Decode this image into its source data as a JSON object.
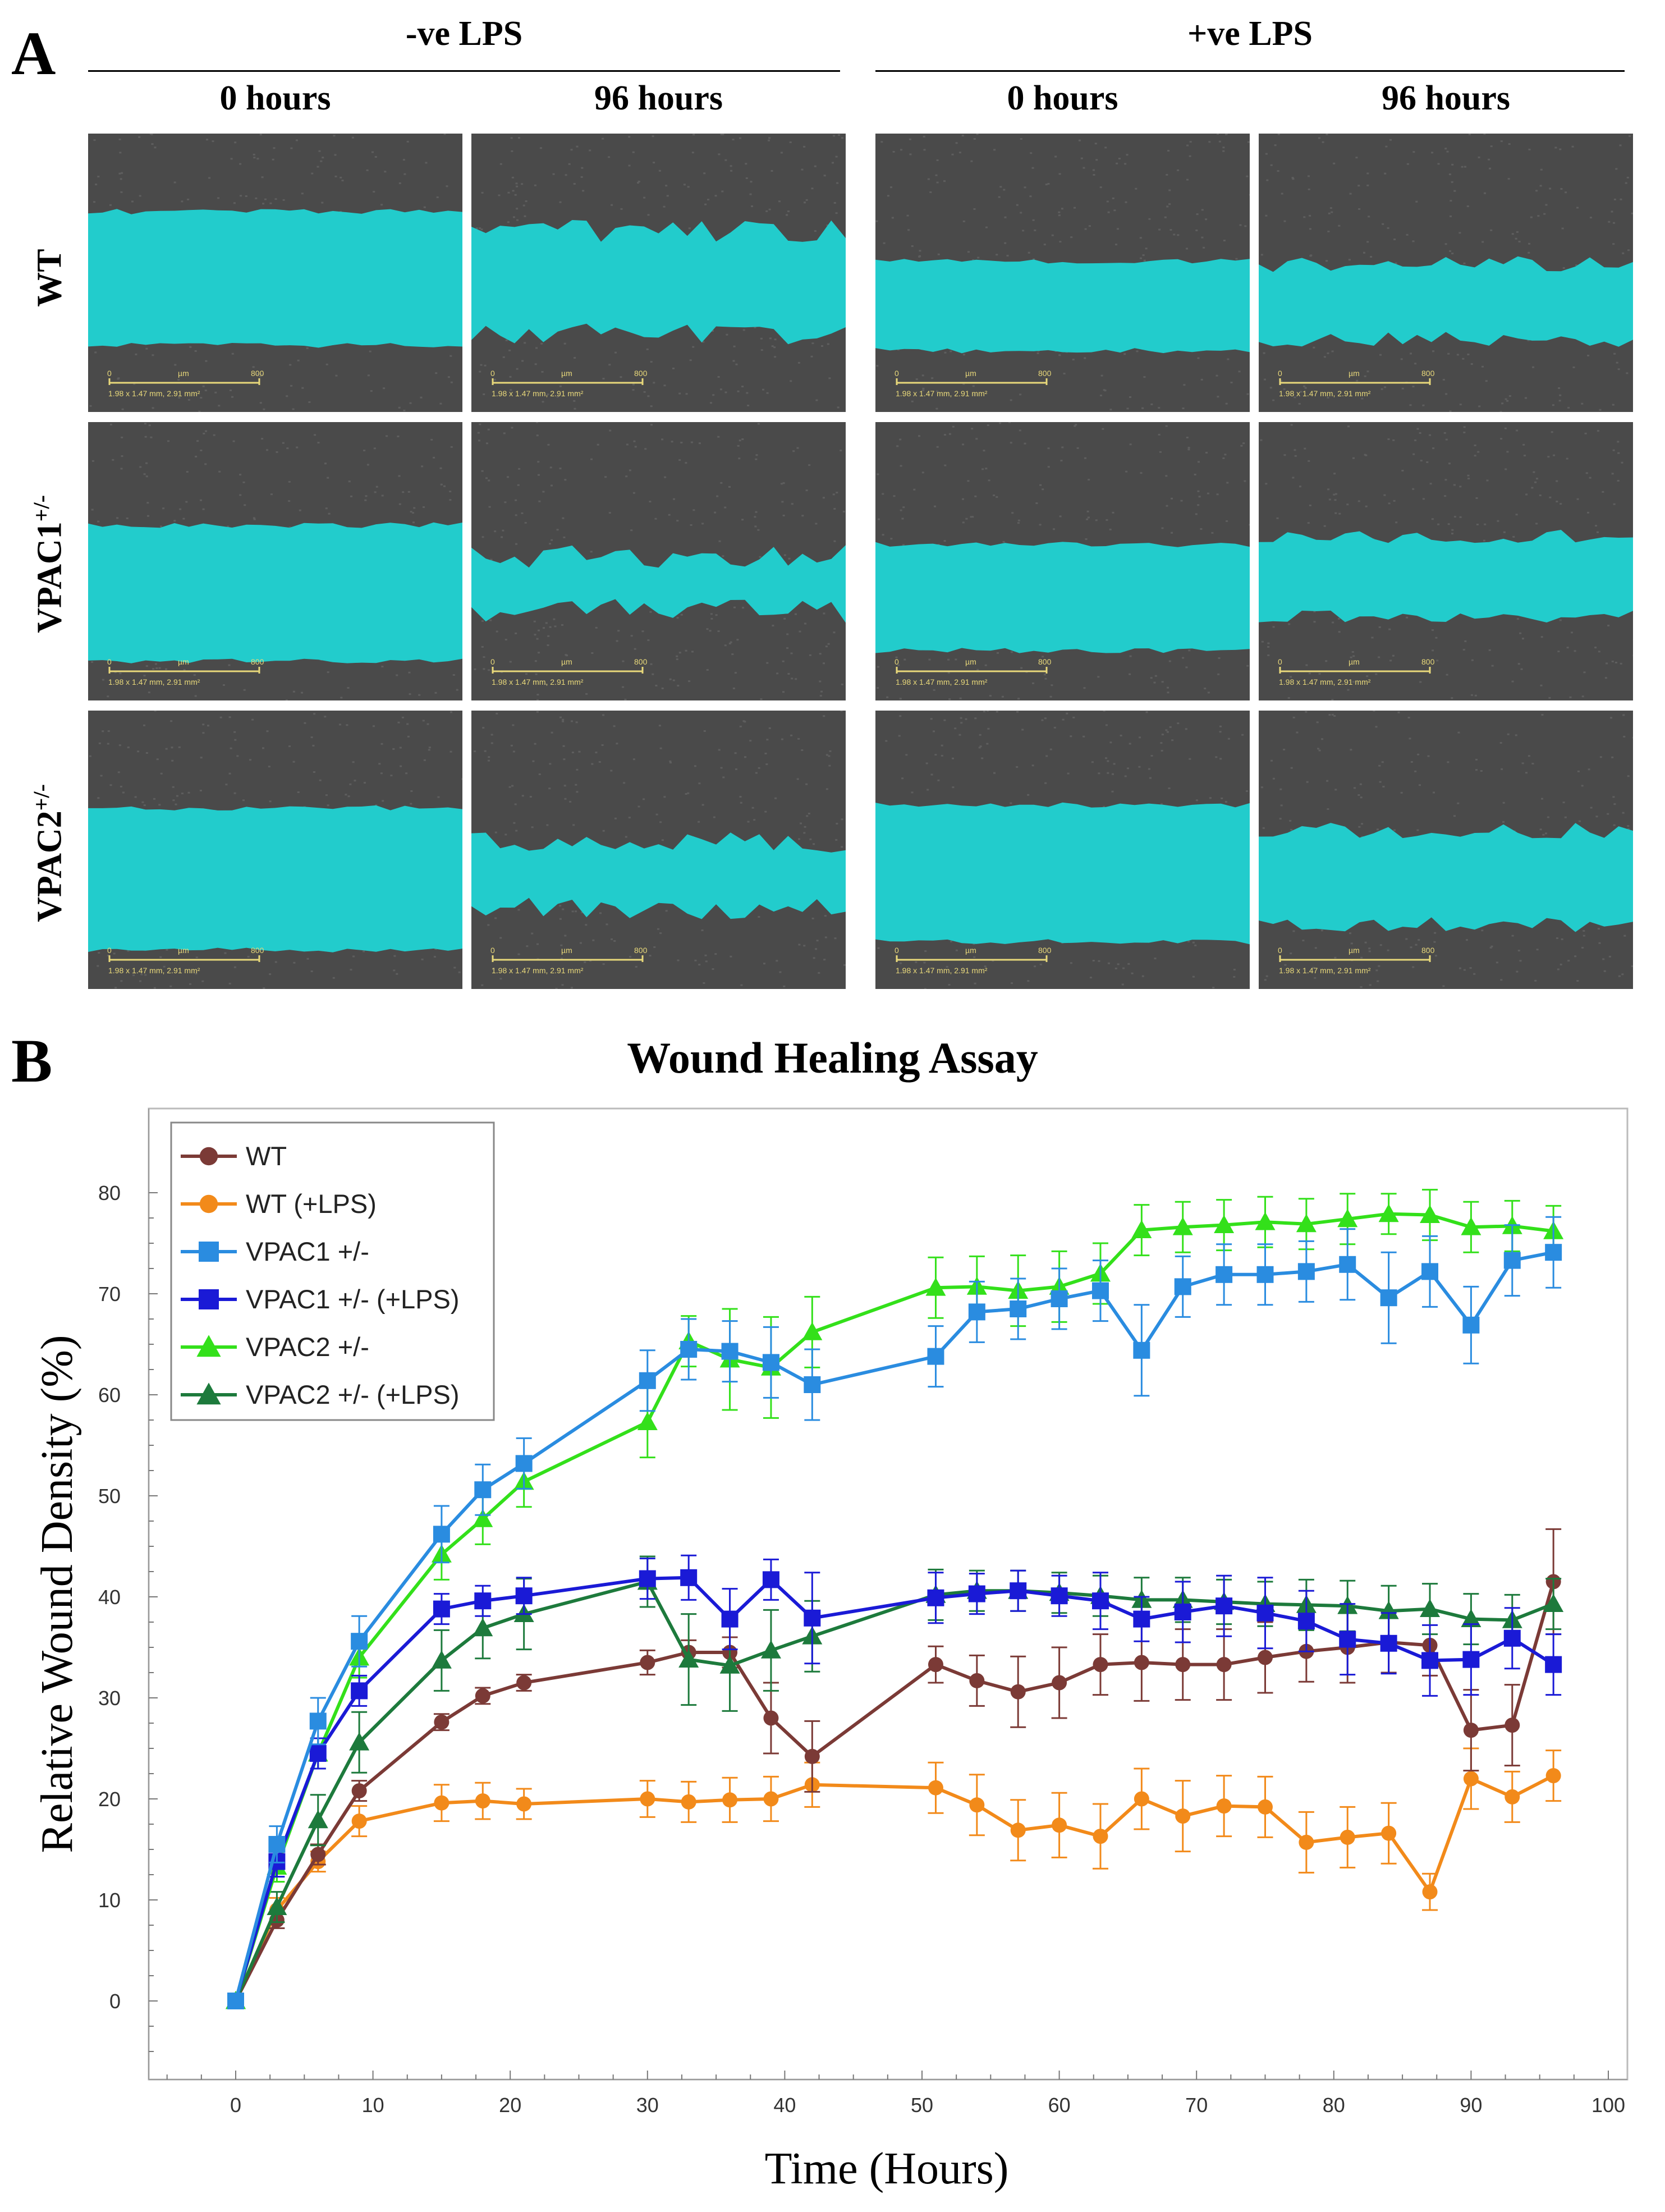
{
  "panel_a": {
    "label": "A",
    "groups": [
      "-ve LPS",
      "+ve LPS"
    ],
    "timepoints": [
      "0 hours",
      "96 hours",
      "0 hours",
      "96 hours"
    ],
    "rows": [
      {
        "name": "WT",
        "sup": ""
      },
      {
        "name": "VPAC1",
        "sup": "+/-"
      },
      {
        "name": "VPAC2",
        "sup": "+/-"
      }
    ],
    "scale_start": "0",
    "scale_unit": "µm",
    "scale_end": "800",
    "scale_caption": "1.98 x 1.47 mm, 2.91 mm²",
    "colors": {
      "wound": "#22cccc",
      "cells": "#4a4a4a"
    }
  },
  "panel_b": {
    "label": "B"
  },
  "chart_data": {
    "type": "line",
    "title": "Wound Healing Assay",
    "xlabel": "Time (Hours)",
    "ylabel": "Relative Wound Density (%)",
    "xlim": [
      -5,
      100
    ],
    "ylim": [
      -8,
      84
    ],
    "xticks": [
      0,
      10,
      20,
      30,
      40,
      50,
      60,
      70,
      80,
      90,
      100
    ],
    "yticks": [
      0,
      10,
      20,
      30,
      40,
      50,
      60,
      70,
      80
    ],
    "legend_position": "top-left",
    "x": [
      0,
      3,
      6,
      9,
      15,
      18,
      21,
      30,
      33,
      36,
      39,
      42,
      51,
      54,
      57,
      60,
      63,
      66,
      69,
      72,
      75,
      78,
      81,
      84,
      87,
      90,
      93,
      96
    ],
    "series": [
      {
        "name": "WT",
        "color": "#7b3a36",
        "marker": "circle",
        "values": [
          0,
          8,
          14.5,
          20.8,
          27.6,
          30.2,
          31.5,
          33.5,
          34.5,
          34.5,
          28,
          24.2,
          33.3,
          31.7,
          30.6,
          31.5,
          33.3,
          33.5,
          33.3,
          33.3,
          34,
          34.6,
          35,
          35.5,
          35.2,
          26.8,
          27.3,
          41.5
        ],
        "errors": [
          0,
          0.8,
          1,
          1,
          0.8,
          0.8,
          0.8,
          1.2,
          1.2,
          1.5,
          3.5,
          3.5,
          1.8,
          2.5,
          3.5,
          3.5,
          3,
          3.8,
          3.5,
          3.5,
          3.5,
          3,
          3.5,
          3,
          3,
          4,
          4,
          5.2
        ]
      },
      {
        "name": "WT (+LPS)",
        "color": "#f28a1a",
        "marker": "circle",
        "values": [
          0,
          9,
          13.8,
          17.8,
          19.6,
          19.8,
          19.5,
          20,
          19.7,
          19.9,
          20,
          21.4,
          21.1,
          19.4,
          16.9,
          17.4,
          16.3,
          20,
          18.3,
          19.3,
          19.2,
          15.7,
          16.2,
          16.6,
          10.8,
          22,
          20.2,
          22.3
        ],
        "errors": [
          0,
          1.2,
          1,
          1.5,
          1.8,
          1.8,
          1.5,
          1.8,
          2,
          2.2,
          2.2,
          2.2,
          2.5,
          3,
          3,
          3.2,
          3.2,
          3,
          3.5,
          3,
          3,
          3,
          3,
          3,
          1.8,
          3,
          2.5,
          2.5
        ]
      },
      {
        "name": "VPAC1 +/-",
        "color": "#2a8ce0",
        "marker": "square",
        "values": [
          0,
          15.5,
          27.7,
          35.6,
          46.2,
          50.6,
          53.2,
          61.4,
          64.5,
          64.3,
          63.2,
          61,
          63.8,
          68.2,
          68.5,
          69.5,
          70.3,
          64.4,
          70.7,
          71.9,
          71.9,
          72.2,
          72.9,
          69.6,
          72.2,
          66.9,
          73.3,
          74.1
        ],
        "errors": [
          0,
          1.8,
          2.3,
          2.5,
          2.8,
          2.5,
          2.5,
          3,
          3,
          3,
          3.5,
          3.5,
          3,
          3,
          3,
          3,
          3,
          4.5,
          3,
          3,
          3,
          3,
          3.5,
          4.5,
          3.5,
          3.8,
          3.5,
          3.5
        ]
      },
      {
        "name": "VPAC1 +/- (+LPS)",
        "color": "#1a1ad6",
        "marker": "square",
        "values": [
          0,
          13.8,
          24.5,
          30.7,
          38.8,
          39.6,
          40.1,
          41.8,
          41.9,
          37.8,
          41.7,
          37.9,
          39.9,
          40.3,
          40.6,
          40.1,
          39.6,
          37.8,
          38.5,
          39.1,
          38.4,
          37.6,
          35.8,
          35.4,
          33.7,
          33.8,
          35.9,
          33.3
        ],
        "errors": [
          0,
          1.5,
          1.5,
          1.5,
          1.5,
          1.5,
          1.8,
          2,
          2.2,
          3,
          2,
          4.5,
          2.5,
          2,
          2,
          2,
          2.8,
          2.2,
          3,
          3,
          3.5,
          3,
          3.5,
          3,
          3.5,
          3.5,
          3,
          3
        ]
      },
      {
        "name": "VPAC2 +/-",
        "color": "#33e01a",
        "marker": "triangle",
        "values": [
          0,
          13.3,
          24.5,
          34,
          44.2,
          47.7,
          51.4,
          57.3,
          65.3,
          63.5,
          62.7,
          66.2,
          70.6,
          70.7,
          70.3,
          70.7,
          72,
          76.3,
          76.6,
          76.8,
          77.1,
          76.9,
          77.4,
          77.9,
          77.8,
          76.6,
          76.7,
          76.2
        ],
        "errors": [
          0,
          1.5,
          1.5,
          2,
          2.5,
          2.5,
          2.5,
          3.5,
          2.5,
          5,
          5,
          3.5,
          3,
          3,
          3.5,
          3.5,
          3,
          2.5,
          2.5,
          2.5,
          2.5,
          2.5,
          2.5,
          2,
          2.5,
          2.5,
          2.5,
          2.5
        ]
      },
      {
        "name": "VPAC2 +/- (+LPS)",
        "color": "#1d7a3c",
        "marker": "triangle",
        "values": [
          0,
          9.3,
          17.9,
          25.6,
          33.7,
          36.9,
          38.3,
          41.5,
          33.8,
          33.2,
          34.7,
          36.1,
          40.2,
          40.6,
          40.6,
          40.4,
          40.1,
          39.7,
          39.7,
          39.5,
          39.3,
          39.2,
          39.1,
          38.6,
          38.8,
          37.8,
          37.7,
          39.3
        ],
        "errors": [
          0,
          1.5,
          2.5,
          3,
          3,
          3,
          3.5,
          2.5,
          4.5,
          4.5,
          4,
          3.5,
          2.5,
          2,
          2,
          2,
          2,
          2.2,
          2.2,
          2.2,
          2.2,
          2.5,
          2.5,
          2.5,
          2.5,
          2.5,
          2.5,
          2.5
        ]
      }
    ]
  }
}
